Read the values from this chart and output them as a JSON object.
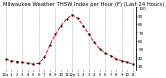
{
  "title": "Milwaukee Weather THSW Index per Hour (F) (Last 24 Hours)",
  "hours": [
    0,
    1,
    2,
    3,
    4,
    5,
    6,
    7,
    8,
    9,
    10,
    11,
    12,
    13,
    14,
    15,
    16,
    17,
    18,
    19,
    20,
    21,
    22,
    23
  ],
  "values": [
    38,
    36,
    35,
    34,
    33,
    32,
    33,
    40,
    55,
    68,
    78,
    86,
    91,
    87,
    78,
    68,
    58,
    50,
    45,
    42,
    38,
    36,
    34,
    32
  ],
  "line_color": "#ff0000",
  "marker_color": "#000000",
  "bg_color": "#ffffff",
  "grid_color": "#999999",
  "title_color": "#000000",
  "title_fontsize": 3.8,
  "ylim": [
    25,
    100
  ],
  "yticks": [
    30,
    40,
    50,
    60,
    70,
    80,
    90,
    100
  ],
  "ylabel_fontsize": 3.0,
  "xlabel_fontsize": 2.8,
  "vgrid_positions": [
    0,
    3,
    6,
    9,
    12,
    15,
    18,
    21,
    23
  ],
  "xtick_labels": [
    "12a",
    "1",
    "2",
    "3",
    "4",
    "5",
    "6",
    "7",
    "8",
    "9",
    "10",
    "11",
    "12p",
    "1",
    "2",
    "3",
    "4",
    "5",
    "6",
    "7",
    "8",
    "9",
    "10",
    "11"
  ]
}
